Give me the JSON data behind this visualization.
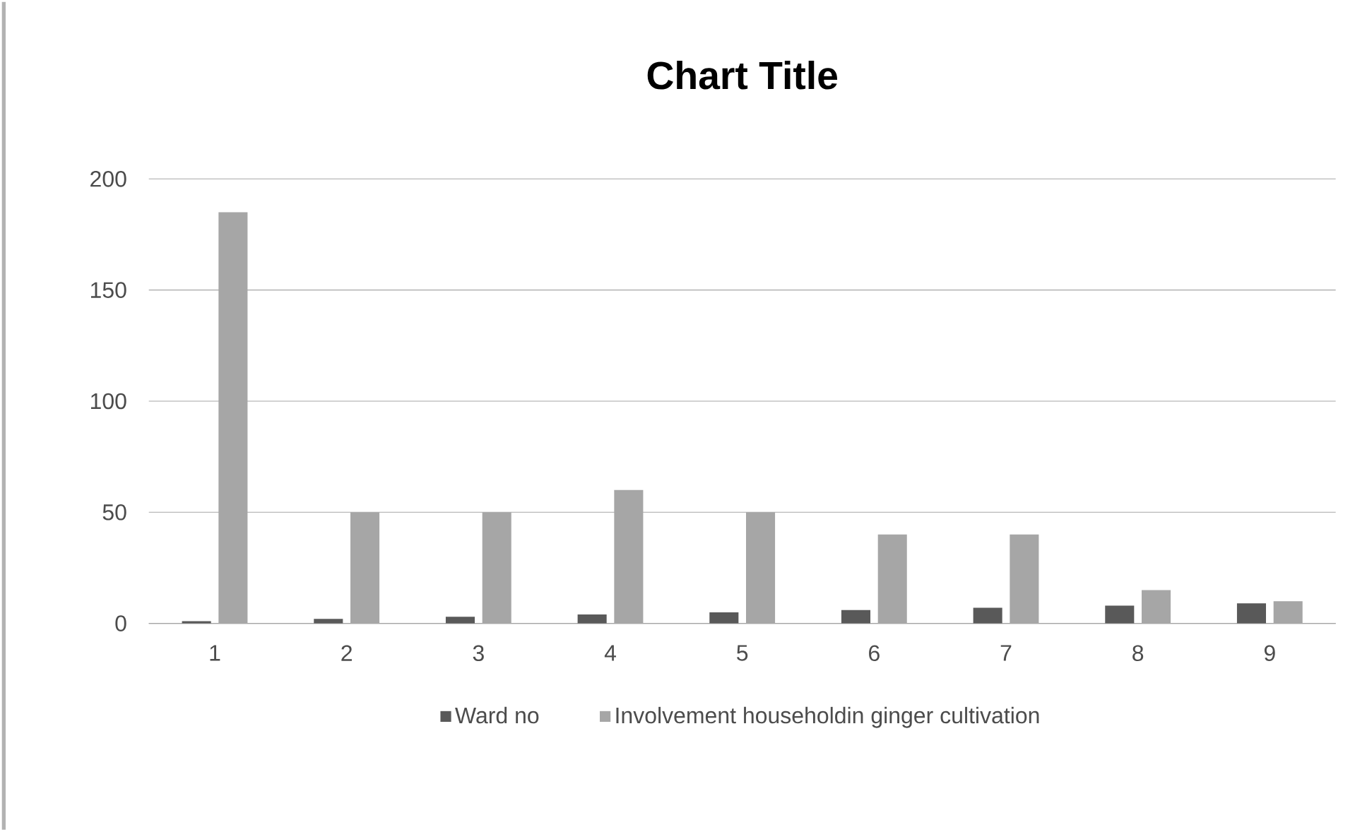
{
  "chart_data": {
    "type": "bar",
    "title": "Chart Title",
    "categories": [
      "1",
      "2",
      "3",
      "4",
      "5",
      "6",
      "7",
      "8",
      "9"
    ],
    "series": [
      {
        "name": "Ward no",
        "color": "#595959",
        "values": [
          1,
          2,
          3,
          4,
          5,
          6,
          7,
          8,
          9
        ]
      },
      {
        "name": "Involvement householdin ginger cultivation",
        "color": "#a6a6a6",
        "values": [
          185,
          50,
          50,
          60,
          50,
          40,
          40,
          15,
          10
        ]
      }
    ],
    "ylim": [
      0,
      200
    ],
    "yticks": [
      0,
      50,
      100,
      150,
      200
    ],
    "grid": "y",
    "legend": "bottom"
  }
}
